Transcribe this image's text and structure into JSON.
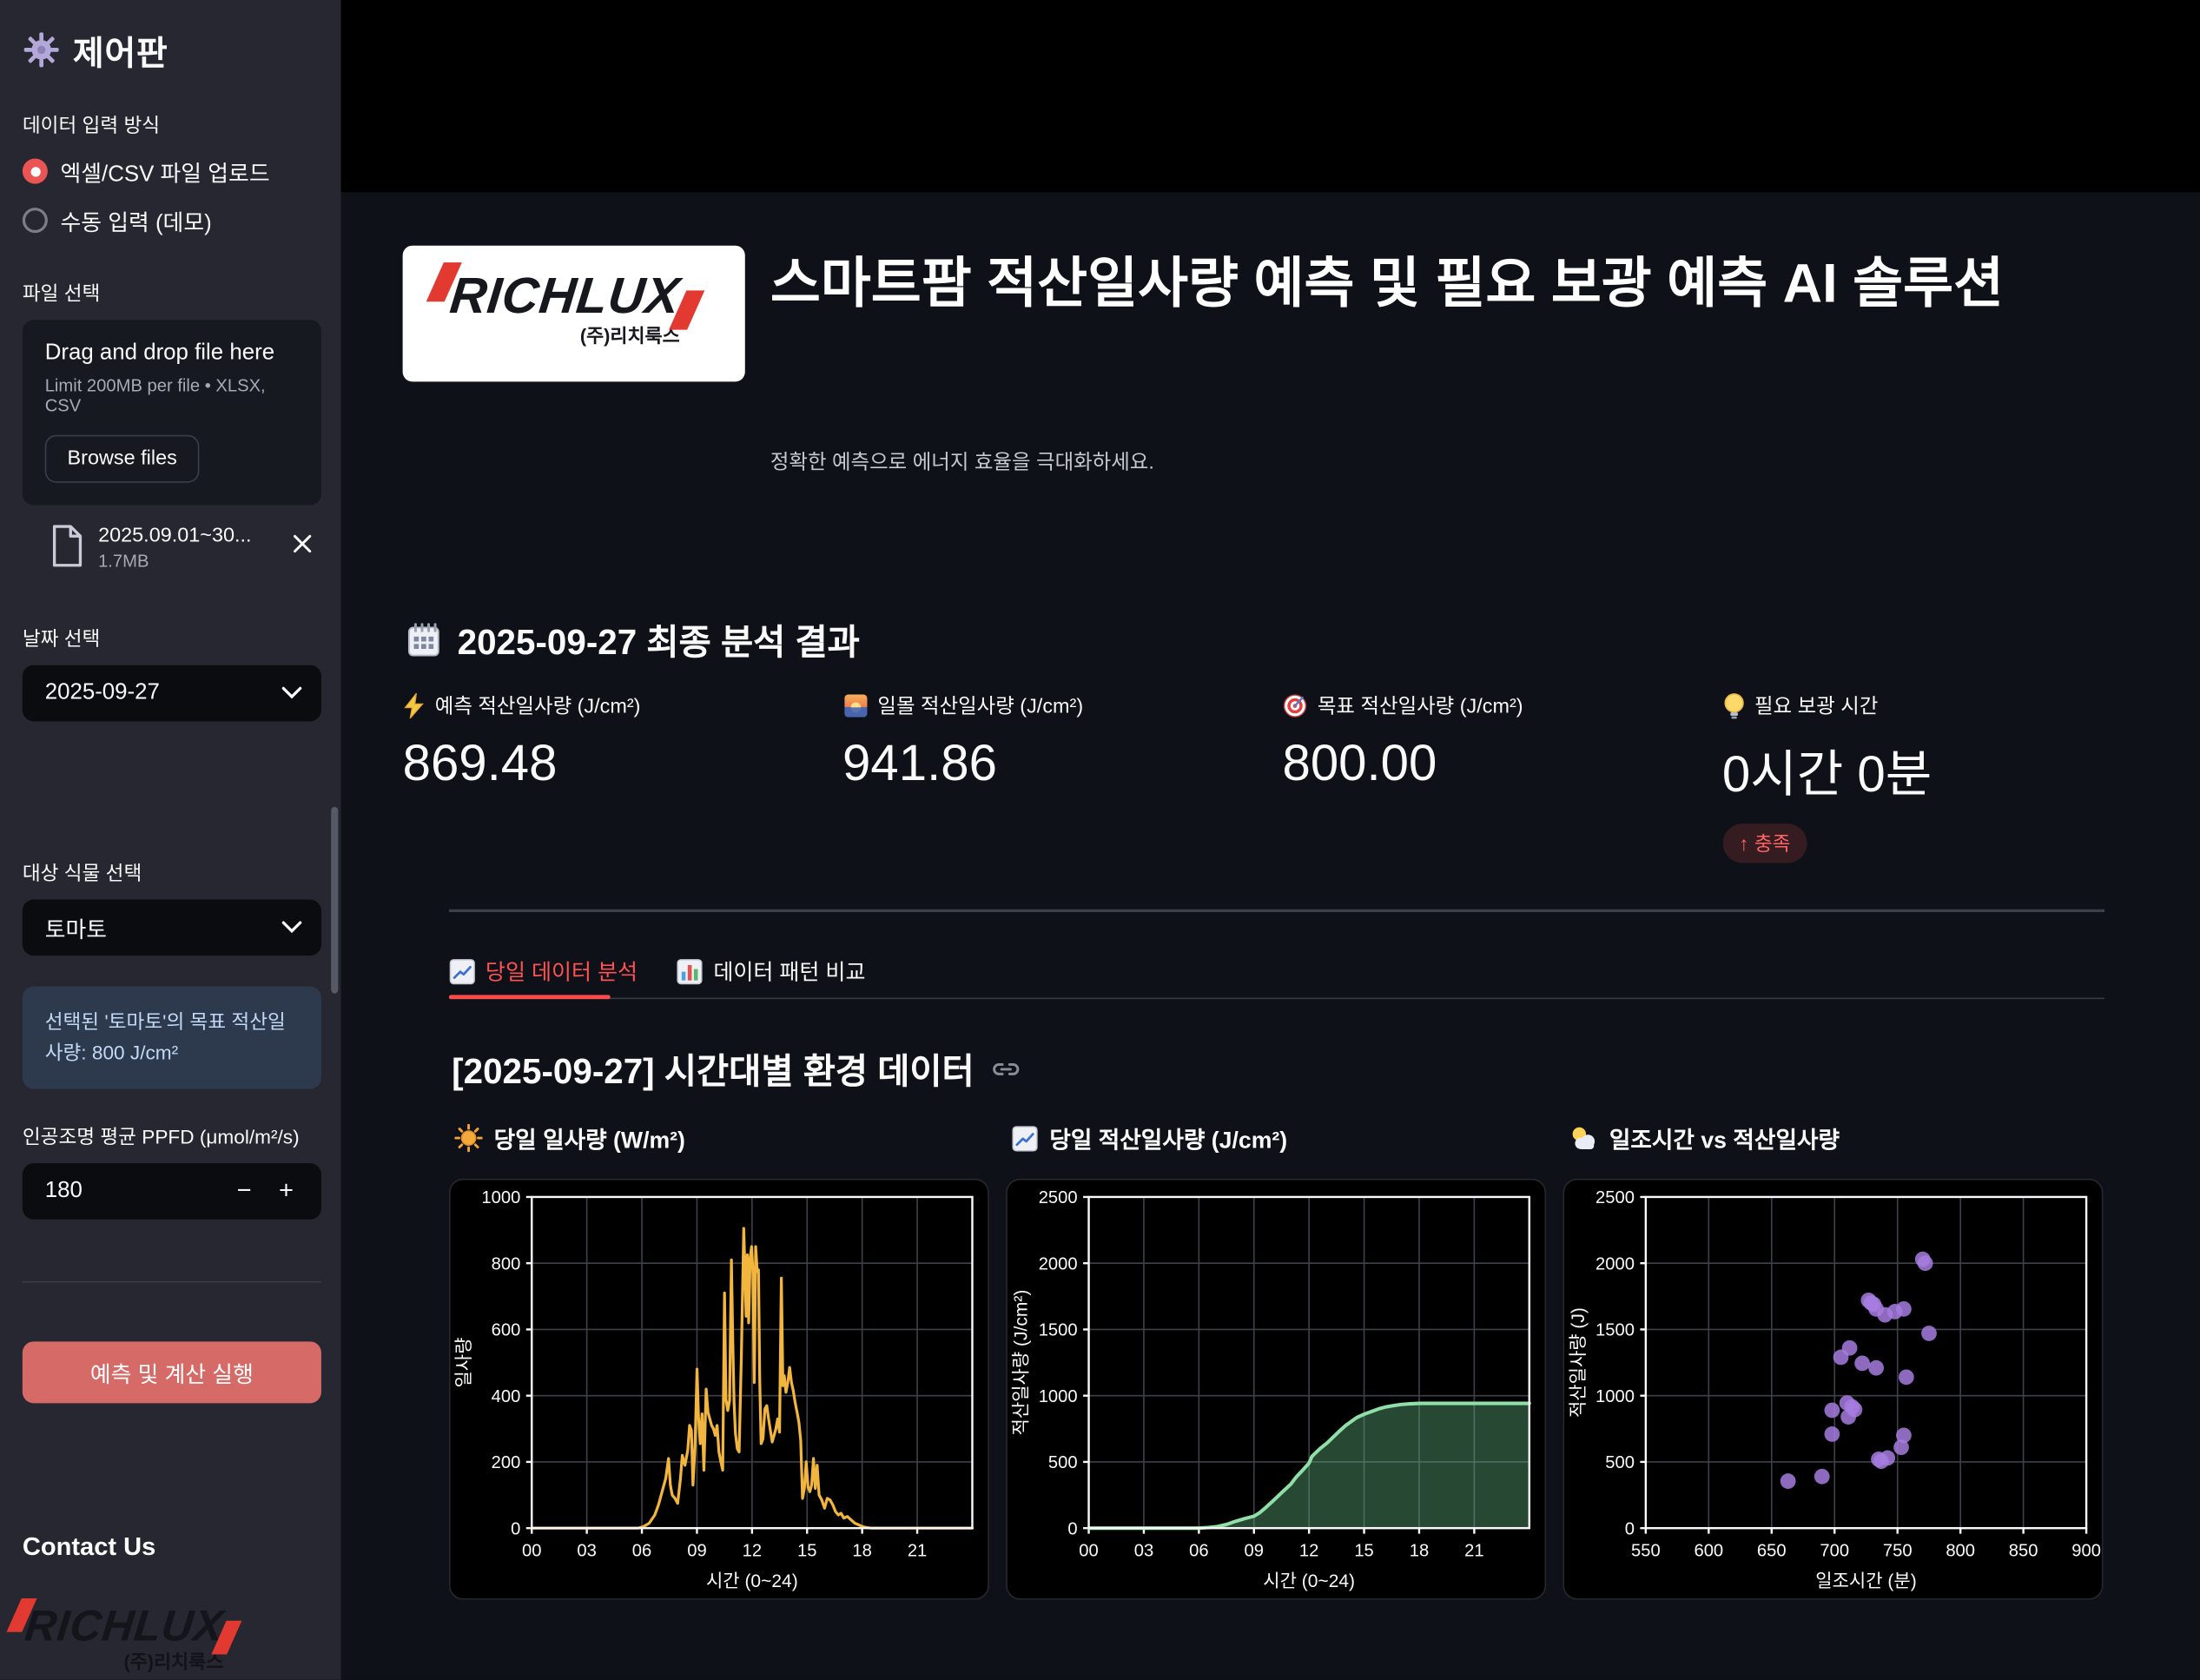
{
  "sidebar": {
    "title": "제어판",
    "input_method": {
      "label": "데이터 입력 방식",
      "options": [
        {
          "label": "엑셀/CSV 파일 업로드",
          "selected": true
        },
        {
          "label": "수동 입력 (데모)",
          "selected": false
        }
      ]
    },
    "file_select": {
      "label": "파일 선택",
      "dropzone_title": "Drag and drop file here",
      "dropzone_hint": "Limit 200MB per file • XLSX, CSV",
      "browse_button": "Browse files",
      "uploaded_file": {
        "name": "2025.09.01~30...",
        "size": "1.7MB"
      }
    },
    "date_select": {
      "label": "날짜 선택",
      "value": "2025-09-27"
    },
    "plant_select": {
      "label": "대상 식물 선택",
      "value": "토마토"
    },
    "info_box": "선택된 '토마토'의 목표 적산일사량: 800 J/cm²",
    "ppfd": {
      "label": "인공조명 평균 PPFD (μmol/m²/s)",
      "value": "180",
      "minus": "−",
      "plus": "+"
    },
    "run_button": "예측 및 계산 실행",
    "contact": {
      "heading": "Contact Us",
      "logo_text": "RICHLUX",
      "logo_sub": "(주)리치룩스"
    }
  },
  "header": {
    "logo_text": "RICHLUX",
    "logo_sub": "(주)리치룩스",
    "title": "스마트팜 적산일사량 예측 및 필요 보광 예측 AI 솔루션",
    "subtitle": "정확한 예측으로 에너지 효율을 극대화하세요."
  },
  "results": {
    "heading": "2025-09-27 최종 분석 결과",
    "metrics": [
      {
        "icon": "lightning-icon",
        "label": "예측 적산일사량 (J/cm²)",
        "value": "869.48"
      },
      {
        "icon": "sunrise-icon",
        "label": "일몰 적산일사량 (J/cm²)",
        "value": "941.86"
      },
      {
        "icon": "target-icon",
        "label": "목표 적산일사량 (J/cm²)",
        "value": "800.00"
      },
      {
        "icon": "bulb-icon",
        "label": "필요 보광 시간",
        "value": "0시간 0분",
        "badge": "↑ 충족"
      }
    ]
  },
  "tabs": [
    {
      "label": "당일 데이터 분석",
      "active": true
    },
    {
      "label": "데이터 패턴 비교",
      "active": false
    }
  ],
  "section": {
    "heading": "[2025-09-27] 시간대별 환경 데이터"
  },
  "colors": {
    "accent_red": "#ff4b4b",
    "button_red": "#d66a67",
    "radio_red": "#ea5452",
    "sidebar_bg": "#262730",
    "main_bg": "#0e1117",
    "card_bg": "#000000",
    "info_bg": "#2d3a4e",
    "info_text": "#c3d9f5",
    "line_orange": "#f2b53d",
    "line_green": "#90dfa8",
    "dot_purple": "#a77de0"
  },
  "chart_data": [
    {
      "type": "line",
      "title": "당일 일사량 (W/m²)",
      "xlabel": "시간 (0~24)",
      "ylabel": "일사량",
      "xlim": [
        0,
        24
      ],
      "ylim": [
        0,
        1000
      ],
      "grid": true,
      "color": "#f2b53d",
      "xticks": [
        {
          "v": 0,
          "t": "00"
        },
        {
          "v": 3,
          "t": "03"
        },
        {
          "v": 6,
          "t": "06"
        },
        {
          "v": 9,
          "t": "09"
        },
        {
          "v": 12,
          "t": "12"
        },
        {
          "v": 15,
          "t": "15"
        },
        {
          "v": 18,
          "t": "18"
        },
        {
          "v": 21,
          "t": "21"
        }
      ],
      "yticks": [
        {
          "v": 0,
          "t": "0"
        },
        {
          "v": 200,
          "t": "200"
        },
        {
          "v": 400,
          "t": "400"
        },
        {
          "v": 600,
          "t": "600"
        },
        {
          "v": 800,
          "t": "800"
        },
        {
          "v": 1000,
          "t": "1000"
        }
      ],
      "x": [
        0,
        5.8,
        6.1,
        6.4,
        6.7,
        6.9,
        7.1,
        7.3,
        7.45,
        7.55,
        7.65,
        7.8,
        7.95,
        8.1,
        8.2,
        8.35,
        8.5,
        8.6,
        8.7,
        8.78,
        8.9,
        9.0,
        9.08,
        9.18,
        9.28,
        9.38,
        9.5,
        9.6,
        9.7,
        9.8,
        9.9,
        10.0,
        10.1,
        10.2,
        10.3,
        10.4,
        10.5,
        10.58,
        10.68,
        10.78,
        10.88,
        10.95,
        11.02,
        11.1,
        11.2,
        11.3,
        11.42,
        11.55,
        11.62,
        11.68,
        11.75,
        11.82,
        11.9,
        11.98,
        12.05,
        12.12,
        12.2,
        12.28,
        12.35,
        12.42,
        12.5,
        12.6,
        12.7,
        12.8,
        12.9,
        13.0,
        13.1,
        13.2,
        13.3,
        13.4,
        13.5,
        13.6,
        13.68,
        13.76,
        13.85,
        13.95,
        14.05,
        14.15,
        14.25,
        14.35,
        14.45,
        14.55,
        14.65,
        14.75,
        14.85,
        14.95,
        15.05,
        15.15,
        15.25,
        15.35,
        15.45,
        15.55,
        15.65,
        15.8,
        15.95,
        16.1,
        16.25,
        16.4,
        16.55,
        16.7,
        16.85,
        17.0,
        17.2,
        17.4,
        17.6,
        17.8,
        18.0,
        18.2,
        18.5,
        24
      ],
      "y": [
        0,
        0,
        5,
        15,
        40,
        70,
        110,
        150,
        210,
        130,
        100,
        90,
        75,
        150,
        220,
        190,
        235,
        310,
        295,
        130,
        250,
        480,
        340,
        255,
        345,
        175,
        420,
        350,
        330,
        310,
        300,
        280,
        310,
        230,
        200,
        175,
        710,
        390,
        355,
        385,
        810,
        560,
        380,
        285,
        240,
        230,
        520,
        905,
        770,
        640,
        825,
        620,
        815,
        850,
        770,
        440,
        850,
        775,
        780,
        445,
        255,
        270,
        360,
        370,
        330,
        295,
        260,
        280,
        300,
        330,
        290,
        755,
        430,
        460,
        410,
        440,
        485,
        440,
        415,
        380,
        350,
        320,
        265,
        90,
        120,
        200,
        125,
        110,
        130,
        210,
        120,
        190,
        100,
        85,
        60,
        90,
        85,
        70,
        50,
        40,
        45,
        30,
        35,
        25,
        15,
        10,
        5,
        2,
        0,
        0
      ]
    },
    {
      "type": "area",
      "title": "당일 적산일사량 (J/cm²)",
      "xlabel": "시간 (0~24)",
      "ylabel": "적산일사량 (J/cm²)",
      "xlim": [
        0,
        24
      ],
      "ylim": [
        0,
        2500
      ],
      "grid": true,
      "color": "#90dfa8",
      "fill": "rgba(94,175,125,0.42)",
      "xticks": [
        {
          "v": 0,
          "t": "00"
        },
        {
          "v": 3,
          "t": "03"
        },
        {
          "v": 6,
          "t": "06"
        },
        {
          "v": 9,
          "t": "09"
        },
        {
          "v": 12,
          "t": "12"
        },
        {
          "v": 15,
          "t": "15"
        },
        {
          "v": 18,
          "t": "18"
        },
        {
          "v": 21,
          "t": "21"
        }
      ],
      "yticks": [
        {
          "v": 0,
          "t": "0"
        },
        {
          "v": 500,
          "t": "500"
        },
        {
          "v": 1000,
          "t": "1000"
        },
        {
          "v": 1500,
          "t": "1500"
        },
        {
          "v": 2000,
          "t": "2000"
        },
        {
          "v": 2500,
          "t": "2500"
        }
      ],
      "x": [
        0,
        6,
        6.5,
        7,
        7.5,
        8,
        8.5,
        9,
        9.3,
        9.6,
        10,
        10.3,
        10.6,
        11,
        11.3,
        11.6,
        12,
        12.15,
        12.3,
        12.6,
        13,
        13.3,
        13.6,
        14,
        14.3,
        14.6,
        15,
        15.4,
        15.8,
        16.2,
        16.6,
        17,
        17.5,
        18,
        19,
        24
      ],
      "y": [
        0,
        0,
        4,
        12,
        28,
        52,
        72,
        90,
        115,
        150,
        200,
        240,
        280,
        330,
        385,
        430,
        490,
        540,
        560,
        600,
        645,
        685,
        725,
        775,
        805,
        835,
        860,
        880,
        900,
        915,
        925,
        933,
        939,
        942,
        942,
        942
      ]
    },
    {
      "type": "scatter",
      "title": "일조시간 vs 적산일사량",
      "xlabel": "일조시간 (분)",
      "ylabel": "적산일사량 (J)",
      "xlim": [
        550,
        900
      ],
      "ylim": [
        0,
        2500
      ],
      "grid": true,
      "color": "#a77de0",
      "xticks": [
        {
          "v": 550,
          "t": "550"
        },
        {
          "v": 600,
          "t": "600"
        },
        {
          "v": 650,
          "t": "650"
        },
        {
          "v": 700,
          "t": "700"
        },
        {
          "v": 750,
          "t": "750"
        },
        {
          "v": 800,
          "t": "800"
        },
        {
          "v": 850,
          "t": "850"
        },
        {
          "v": 900,
          "t": "900"
        }
      ],
      "yticks": [
        {
          "v": 0,
          "t": "0"
        },
        {
          "v": 500,
          "t": "500"
        },
        {
          "v": 1000,
          "t": "1000"
        },
        {
          "v": 1500,
          "t": "1500"
        },
        {
          "v": 2000,
          "t": "2000"
        },
        {
          "v": 2500,
          "t": "2500"
        }
      ],
      "points": [
        [
          663,
          355
        ],
        [
          690,
          390
        ],
        [
          698,
          710
        ],
        [
          698,
          890
        ],
        [
          705,
          1290
        ],
        [
          710,
          945
        ],
        [
          711,
          840
        ],
        [
          712,
          1360
        ],
        [
          714,
          915
        ],
        [
          716,
          895
        ],
        [
          722,
          1245
        ],
        [
          727,
          1720
        ],
        [
          729,
          1700
        ],
        [
          731,
          1690
        ],
        [
          733,
          1655
        ],
        [
          733,
          1210
        ],
        [
          735,
          520
        ],
        [
          737,
          505
        ],
        [
          740,
          1610
        ],
        [
          742,
          530
        ],
        [
          748,
          1635
        ],
        [
          753,
          610
        ],
        [
          755,
          700
        ],
        [
          755,
          1655
        ],
        [
          757,
          1140
        ],
        [
          770,
          2030
        ],
        [
          772,
          2000
        ],
        [
          775,
          1470
        ]
      ]
    }
  ]
}
